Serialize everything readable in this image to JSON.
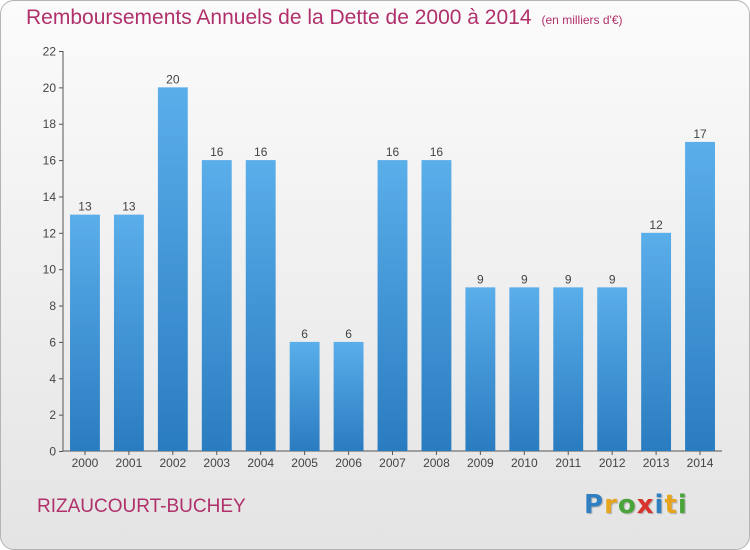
{
  "chart_data": {
    "type": "bar",
    "title": "Remboursements Annuels de la Dette de 2000 à 2014",
    "unit_note": "(en milliers d'€)",
    "categories": [
      "2000",
      "2001",
      "2002",
      "2003",
      "2004",
      "2005",
      "2006",
      "2007",
      "2008",
      "2009",
      "2010",
      "2011",
      "2012",
      "2013",
      "2014"
    ],
    "values": [
      13,
      13,
      20,
      16,
      16,
      6,
      6,
      16,
      16,
      9,
      9,
      9,
      9,
      12,
      17
    ],
    "ylim": [
      0,
      22
    ],
    "yticks": [
      0,
      2,
      4,
      6,
      8,
      10,
      12,
      14,
      16,
      18,
      20,
      22
    ],
    "grid": false,
    "bar_color": "#4a9ee0"
  },
  "footer": {
    "commune": "RIZAUCOURT-BUCHEY",
    "brand_letters": [
      {
        "ch": "P",
        "color": "#2f7fc1"
      },
      {
        "ch": "r",
        "color": "#e6a51c"
      },
      {
        "ch": "o",
        "color": "#4aa43a"
      },
      {
        "ch": "x",
        "color": "#d9342b"
      },
      {
        "ch": "i",
        "color": "#2f7fc1"
      },
      {
        "ch": "t",
        "color": "#e6a51c"
      },
      {
        "ch": "i",
        "color": "#4aa43a"
      }
    ]
  }
}
